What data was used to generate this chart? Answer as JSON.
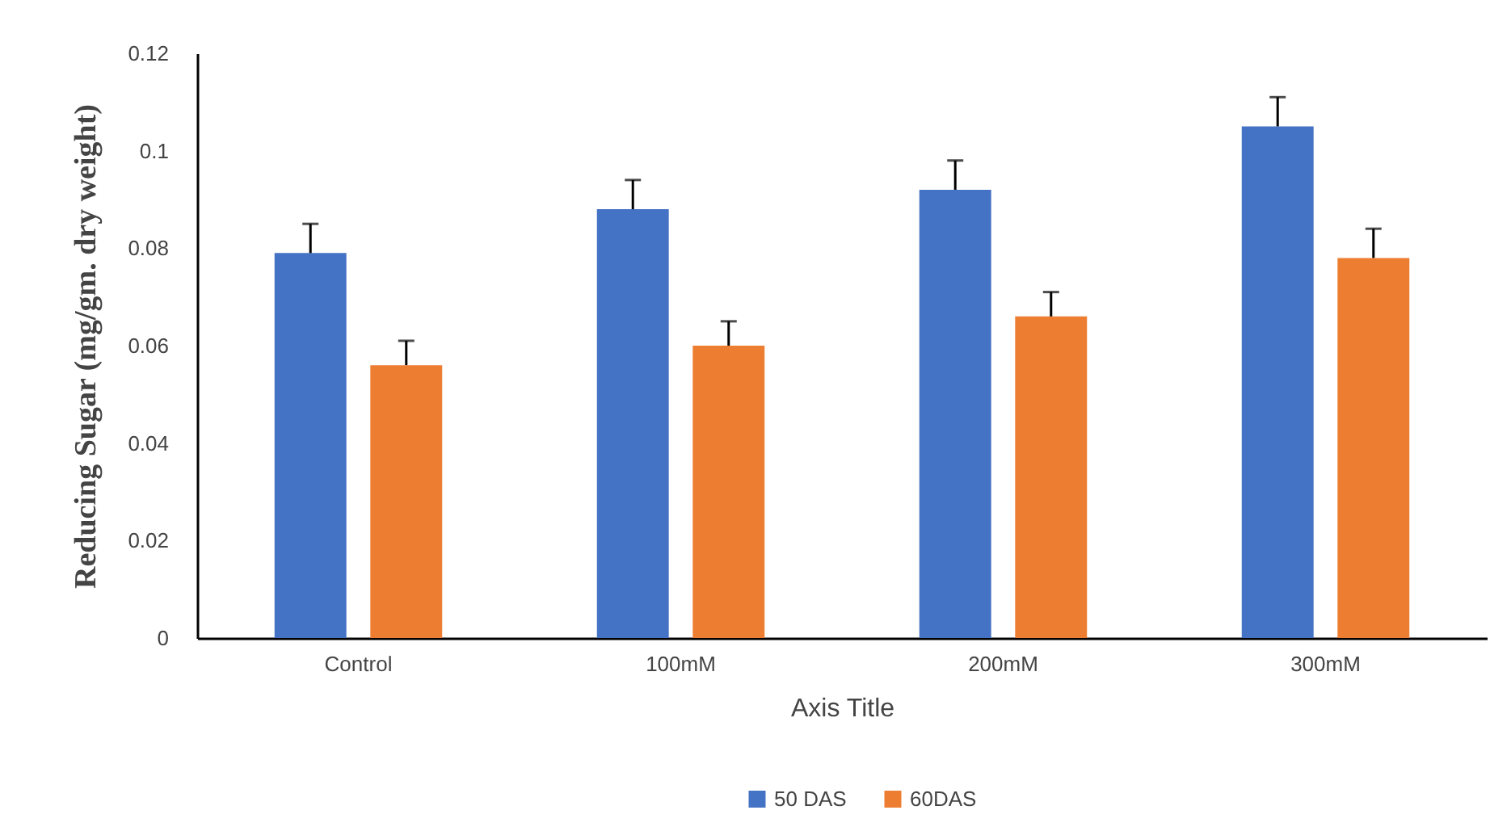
{
  "chart_data": {
    "type": "bar",
    "xlabel": "Axis Title",
    "ylabel": "Reducing Sugar (mg/gm. dry weight)",
    "categories": [
      "Control",
      "100mM",
      "200mM",
      "300mM"
    ],
    "series": [
      {
        "name": "50 DAS",
        "color": "#4472c4",
        "values": [
          0.079,
          0.088,
          0.092,
          0.105
        ],
        "errors": [
          [
            0.079,
            0.085
          ],
          [
            0.088,
            0.094
          ],
          [
            0.092,
            0.098
          ],
          [
            0.105,
            0.111
          ]
        ]
      },
      {
        "name": "60DAS",
        "color": "#ed7d31",
        "values": [
          0.056,
          0.06,
          0.066,
          0.078
        ],
        "errors": [
          [
            0.056,
            0.061
          ],
          [
            0.06,
            0.065
          ],
          [
            0.066,
            0.071
          ],
          [
            0.078,
            0.084
          ]
        ]
      }
    ],
    "ylim": [
      0,
      0.12
    ],
    "yticks": [
      0,
      0.02,
      0.04,
      0.06,
      0.08,
      0.1,
      0.12
    ],
    "grid": false,
    "legend": "bottom"
  }
}
